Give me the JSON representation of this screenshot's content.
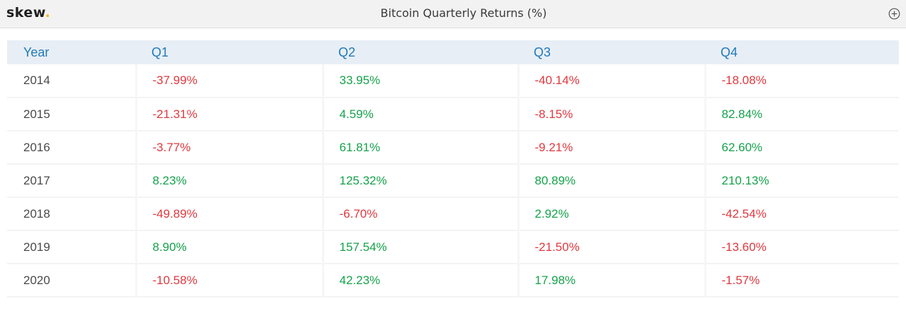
{
  "header": {
    "logo_text": "skew",
    "logo_dot": ".",
    "title": "Bitcoin Quarterly Returns (%)",
    "add_icon": "plus-circle-icon"
  },
  "colors": {
    "negative": "#e0383e",
    "positive": "#15a24b",
    "header_text": "#1f7ab8",
    "logo_dot": "#f2b81b"
  },
  "chart_data": {
    "type": "table",
    "title": "Bitcoin Quarterly Returns (%)",
    "columns": [
      "Year",
      "Q1",
      "Q2",
      "Q3",
      "Q4"
    ],
    "rows": [
      {
        "year": "2014",
        "values": [
          "-37.99%",
          "33.95%",
          "-40.14%",
          "-18.08%"
        ]
      },
      {
        "year": "2015",
        "values": [
          "-21.31%",
          "4.59%",
          "-8.15%",
          "82.84%"
        ]
      },
      {
        "year": "2016",
        "values": [
          "-3.77%",
          "61.81%",
          "-9.21%",
          "62.60%"
        ]
      },
      {
        "year": "2017",
        "values": [
          "8.23%",
          "125.32%",
          "80.89%",
          "210.13%"
        ]
      },
      {
        "year": "2018",
        "values": [
          "-49.89%",
          "-6.70%",
          "2.92%",
          "-42.54%"
        ]
      },
      {
        "year": "2019",
        "values": [
          "8.90%",
          "157.54%",
          "-21.50%",
          "-13.60%"
        ]
      },
      {
        "year": "2020",
        "values": [
          "-10.58%",
          "42.23%",
          "17.98%",
          "-1.57%"
        ]
      }
    ]
  }
}
